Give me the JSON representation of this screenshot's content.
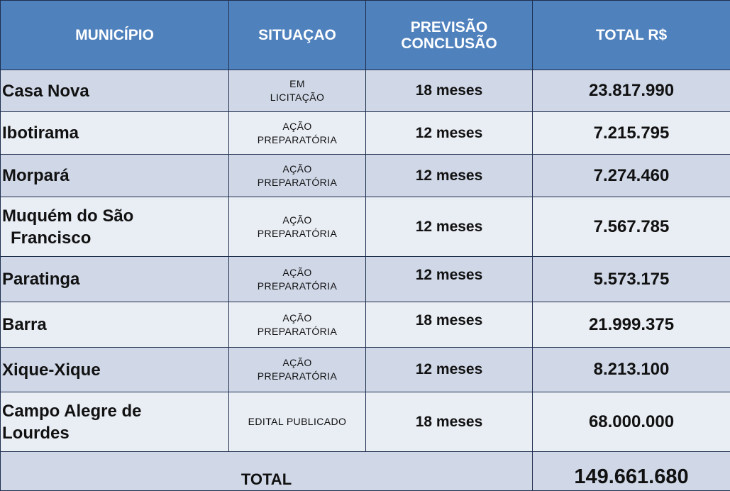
{
  "headers": {
    "municipio": "MUNICÍPIO",
    "situacao": "SITUAÇAO",
    "previsao_line1": "PREVISÃO",
    "previsao_line2": "CONCLUSÃO",
    "total": "TOTAL R$"
  },
  "rows": [
    {
      "municipio_l1": "Casa Nova",
      "municipio_l2": "",
      "situacao_l1": "EM",
      "situacao_l2": "LICITAÇÃO",
      "previsao": "18 meses",
      "total": "23.817.990"
    },
    {
      "municipio_l1": "Ibotirama",
      "municipio_l2": "",
      "situacao_l1": "AÇÃO",
      "situacao_l2": "PREPARATÓRIA",
      "previsao": "12 meses",
      "total": "7.215.795"
    },
    {
      "municipio_l1": "Morpará",
      "municipio_l2": "",
      "situacao_l1": "AÇÃO",
      "situacao_l2": "PREPARATÓRIA",
      "previsao": "12 meses",
      "total": "7.274.460"
    },
    {
      "municipio_l1": "Muquém do São",
      "municipio_l2": "Francisco",
      "situacao_l1": "AÇÃO",
      "situacao_l2": "PREPARATÓRIA",
      "previsao": "12 meses",
      "total": "7.567.785"
    },
    {
      "municipio_l1": "Paratinga",
      "municipio_l2": "",
      "situacao_l1": "AÇÃO",
      "situacao_l2": "PREPARATÓRIA",
      "previsao": "12 meses",
      "total": "5.573.175"
    },
    {
      "municipio_l1": "Barra",
      "municipio_l2": "",
      "situacao_l1": "AÇÃO",
      "situacao_l2": "PREPARATÓRIA",
      "previsao": "18 meses",
      "total": "21.999.375"
    },
    {
      "municipio_l1": "Xique-Xique",
      "municipio_l2": "",
      "situacao_l1": "AÇÃO",
      "situacao_l2": "PREPARATÓRIA",
      "previsao": "12 meses",
      "total": "8.213.100"
    },
    {
      "municipio_l1": "Campo Alegre de",
      "municipio_l2": "Lourdes",
      "situacao_l1": "EDITAL PUBLICADO",
      "situacao_l2": "",
      "previsao": "18 meses",
      "total": "68.000.000"
    }
  ],
  "footer": {
    "label": "TOTAL",
    "value": "149.661.680"
  },
  "colors": {
    "header_bg": "#4f81bd",
    "row_odd_bg": "#d0d8e8",
    "row_even_bg": "#e9edf4",
    "border": "#1f2f4f"
  }
}
